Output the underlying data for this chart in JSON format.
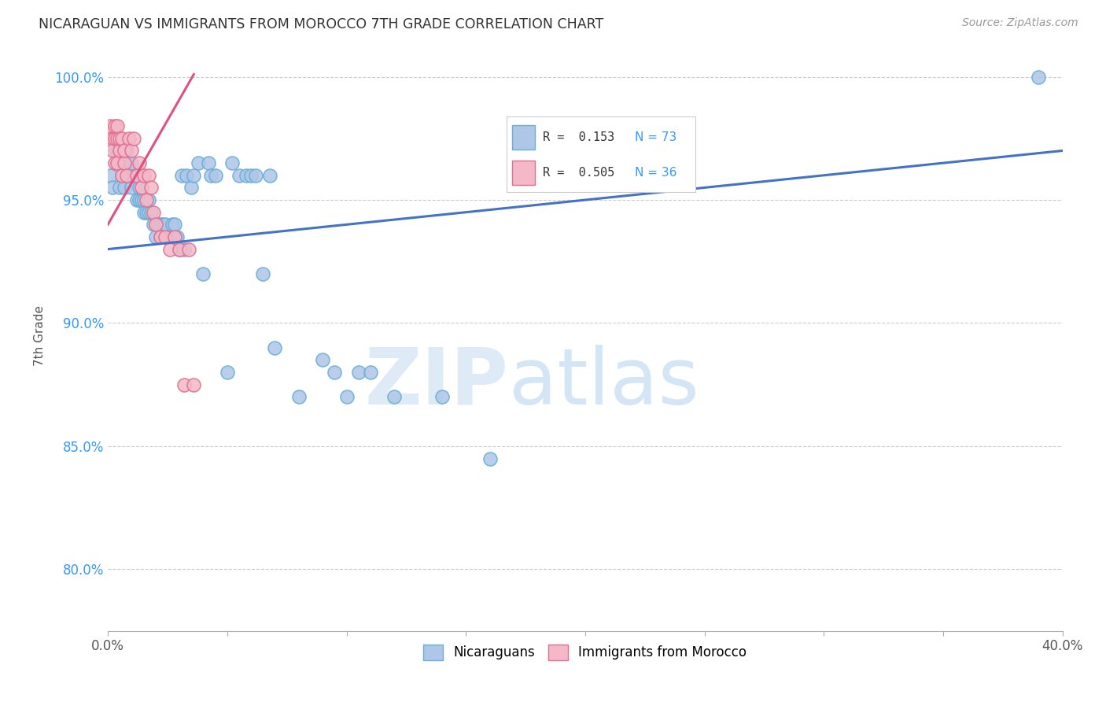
{
  "title": "NICARAGUAN VS IMMIGRANTS FROM MOROCCO 7TH GRADE CORRELATION CHART",
  "source": "Source: ZipAtlas.com",
  "ylabel": "7th Grade",
  "xlim": [
    0.0,
    0.4
  ],
  "ylim": [
    0.775,
    1.015
  ],
  "yticks": [
    0.8,
    0.85,
    0.9,
    0.95,
    1.0
  ],
  "ytick_labels": [
    "80.0%",
    "85.0%",
    "90.0%",
    "95.0%",
    "100.0%"
  ],
  "xticks": [
    0.0,
    0.05,
    0.1,
    0.15,
    0.2,
    0.25,
    0.3,
    0.35,
    0.4
  ],
  "xtick_labels": [
    "0.0%",
    "",
    "",
    "",
    "",
    "",
    "",
    "",
    "40.0%"
  ],
  "legend_r1": "R =  0.153",
  "legend_n1": "N = 73",
  "legend_r2": "R =  0.505",
  "legend_n2": "N = 36",
  "blue_color": "#aec6e8",
  "blue_edge": "#6aaed6",
  "pink_color": "#f4b8c8",
  "pink_edge": "#e07090",
  "line_blue": "#4472c4",
  "line_pink": "#e05080",
  "watermark_zip": "ZIP",
  "watermark_atlas": "atlas",
  "blue_x": [
    0.001,
    0.002,
    0.003,
    0.003,
    0.004,
    0.004,
    0.005,
    0.005,
    0.006,
    0.006,
    0.007,
    0.007,
    0.008,
    0.008,
    0.009,
    0.01,
    0.01,
    0.01,
    0.012,
    0.012,
    0.013,
    0.013,
    0.014,
    0.014,
    0.015,
    0.015,
    0.016,
    0.017,
    0.017,
    0.018,
    0.019,
    0.02,
    0.021,
    0.022,
    0.022,
    0.023,
    0.024,
    0.025,
    0.026,
    0.027,
    0.028,
    0.028,
    0.029,
    0.03,
    0.031,
    0.032,
    0.033,
    0.035,
    0.036,
    0.038,
    0.04,
    0.042,
    0.043,
    0.045,
    0.05,
    0.052,
    0.055,
    0.058,
    0.06,
    0.062,
    0.065,
    0.068,
    0.07,
    0.08,
    0.09,
    0.095,
    0.1,
    0.105,
    0.11,
    0.12,
    0.14,
    0.16,
    0.39
  ],
  "blue_y": [
    0.96,
    0.955,
    0.97,
    0.975,
    0.965,
    0.97,
    0.955,
    0.97,
    0.96,
    0.965,
    0.955,
    0.965,
    0.96,
    0.97,
    0.965,
    0.955,
    0.96,
    0.965,
    0.95,
    0.96,
    0.95,
    0.955,
    0.95,
    0.96,
    0.945,
    0.95,
    0.945,
    0.95,
    0.945,
    0.945,
    0.94,
    0.935,
    0.94,
    0.935,
    0.94,
    0.94,
    0.94,
    0.935,
    0.935,
    0.94,
    0.935,
    0.94,
    0.935,
    0.93,
    0.96,
    0.93,
    0.96,
    0.955,
    0.96,
    0.965,
    0.92,
    0.965,
    0.96,
    0.96,
    0.88,
    0.965,
    0.96,
    0.96,
    0.96,
    0.96,
    0.92,
    0.96,
    0.89,
    0.87,
    0.885,
    0.88,
    0.87,
    0.88,
    0.88,
    0.87,
    0.87,
    0.845,
    1.0
  ],
  "pink_x": [
    0.001,
    0.002,
    0.002,
    0.003,
    0.003,
    0.003,
    0.004,
    0.004,
    0.004,
    0.005,
    0.005,
    0.006,
    0.006,
    0.007,
    0.007,
    0.008,
    0.009,
    0.01,
    0.011,
    0.012,
    0.013,
    0.014,
    0.015,
    0.016,
    0.017,
    0.018,
    0.019,
    0.02,
    0.022,
    0.024,
    0.026,
    0.028,
    0.03,
    0.032,
    0.034,
    0.036
  ],
  "pink_y": [
    0.98,
    0.975,
    0.97,
    0.975,
    0.965,
    0.98,
    0.975,
    0.98,
    0.965,
    0.97,
    0.975,
    0.975,
    0.96,
    0.965,
    0.97,
    0.96,
    0.975,
    0.97,
    0.975,
    0.96,
    0.965,
    0.955,
    0.96,
    0.95,
    0.96,
    0.955,
    0.945,
    0.94,
    0.935,
    0.935,
    0.93,
    0.935,
    0.93,
    0.875,
    0.93,
    0.875
  ],
  "blue_line_x": [
    0.0,
    0.4
  ],
  "blue_line_y": [
    0.93,
    0.97
  ],
  "pink_line_x": [
    0.0,
    0.036
  ],
  "pink_line_y": [
    0.94,
    1.001
  ]
}
